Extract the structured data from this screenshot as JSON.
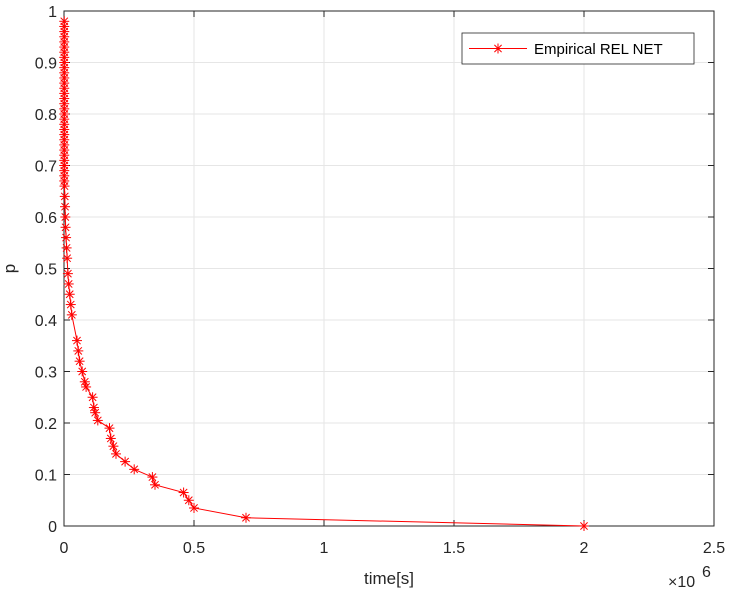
{
  "chart_data": {
    "type": "line",
    "title": "",
    "xlabel": "time[s]",
    "ylabel": "p",
    "x_exponent_label": "×10",
    "x_exponent": "6",
    "xlim": [
      0,
      2.5
    ],
    "ylim": [
      0,
      1
    ],
    "x_ticks": [
      "0",
      "0.5",
      "1",
      "1.5",
      "2",
      "2.5"
    ],
    "y_ticks": [
      "0",
      "0.1",
      "0.2",
      "0.3",
      "0.4",
      "0.5",
      "0.6",
      "0.7",
      "0.8",
      "0.9",
      "1"
    ],
    "grid": true,
    "legend_position": "top-right",
    "colors": {
      "series": "#ff0000",
      "grid": "#e6e6e6",
      "axis": "#262626"
    },
    "series": [
      {
        "name": "Empirical REL NET",
        "marker": "asterisk",
        "x": [
          0.001,
          0.001,
          0.001,
          0.001,
          0.001,
          0.001,
          0.001,
          0.001,
          0.001,
          0.001,
          0.001,
          0.001,
          0.001,
          0.001,
          0.001,
          0.001,
          0.001,
          0.001,
          0.001,
          0.001,
          0.001,
          0.001,
          0.001,
          0.001,
          0.001,
          0.001,
          0.001,
          0.001,
          0.001,
          0.001,
          0.001,
          0.001,
          0.002,
          0.003,
          0.004,
          0.005,
          0.006,
          0.008,
          0.01,
          0.012,
          0.015,
          0.018,
          0.022,
          0.026,
          0.03,
          0.05,
          0.055,
          0.06,
          0.07,
          0.08,
          0.085,
          0.11,
          0.115,
          0.12,
          0.13,
          0.175,
          0.18,
          0.19,
          0.2,
          0.235,
          0.27,
          0.34,
          0.35,
          0.46,
          0.48,
          0.5,
          0.7,
          2.0
        ],
        "y": [
          0.98,
          0.97,
          0.96,
          0.95,
          0.94,
          0.93,
          0.92,
          0.91,
          0.9,
          0.89,
          0.88,
          0.87,
          0.86,
          0.85,
          0.84,
          0.83,
          0.82,
          0.81,
          0.8,
          0.79,
          0.78,
          0.77,
          0.76,
          0.75,
          0.74,
          0.73,
          0.72,
          0.71,
          0.7,
          0.69,
          0.68,
          0.67,
          0.66,
          0.64,
          0.62,
          0.6,
          0.58,
          0.56,
          0.54,
          0.52,
          0.49,
          0.47,
          0.45,
          0.43,
          0.41,
          0.36,
          0.34,
          0.32,
          0.3,
          0.28,
          0.27,
          0.25,
          0.23,
          0.22,
          0.205,
          0.19,
          0.17,
          0.155,
          0.14,
          0.125,
          0.11,
          0.095,
          0.08,
          0.065,
          0.05,
          0.035,
          0.016,
          0.0
        ]
      }
    ]
  }
}
